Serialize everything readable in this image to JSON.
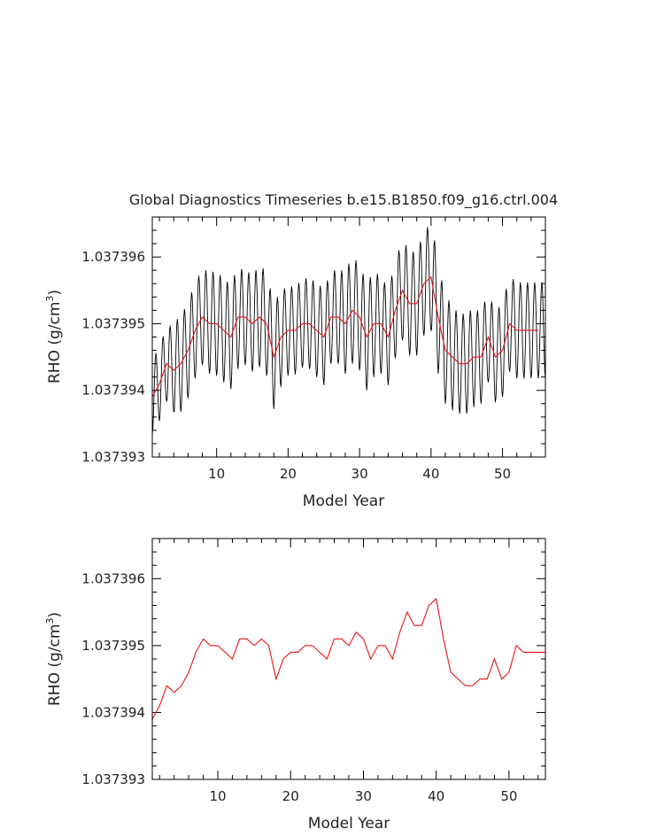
{
  "chart_data": [
    {
      "type": "line",
      "title": "Global Diagnostics Timeseries b.e15.B1850.f09_g16.ctrl.004",
      "xlabel": "Model Year",
      "ylabel": "RHO (g/cm",
      "ylabel_sup": "3",
      "ylabel_close": ")",
      "xlim": [
        1,
        56
      ],
      "ylim": [
        1.037393,
        1.0373966
      ],
      "xticks": [
        10,
        20,
        30,
        40,
        50
      ],
      "xtick_labels": [
        "10",
        "20",
        "30",
        "40",
        "50"
      ],
      "yticks": [
        1.037393,
        1.037394,
        1.037395,
        1.037396
      ],
      "ytick_labels": [
        "1.037393",
        "1.037394",
        "1.037395",
        "1.037396"
      ],
      "grid": false,
      "series": [
        {
          "color": "#000000",
          "resolution": "monthly",
          "x_start": 1.0,
          "x_step": 0.0833333,
          "seasonal_amplitude": [
            0.56,
            0.56,
            0.62,
            0.72,
            0.72,
            0.72,
            0.72,
            0.75,
            0.78,
            0.78,
            0.78,
            0.78,
            0.72,
            0.72,
            0.75,
            0.78,
            0.78,
            0.75,
            0.68,
            0.66,
            0.66,
            0.68,
            0.7,
            0.72,
            0.7,
            0.7,
            0.75,
            0.8,
            0.8,
            0.8,
            0.8,
            0.75,
            0.72,
            0.72,
            0.75,
            0.78,
            0.78,
            0.78,
            0.8,
            0.85,
            0.8,
            0.8,
            0.75,
            0.75,
            0.75,
            0.7,
            0.68,
            0.68,
            0.7,
            0.72,
            0.72,
            0.72,
            0.72,
            0.72,
            0.72
          ]
        },
        {
          "color": "#e8141a",
          "resolution": "annual",
          "x": [
            1,
            2,
            3,
            4,
            5,
            6,
            7,
            8,
            9,
            10,
            11,
            12,
            13,
            14,
            15,
            16,
            17,
            18,
            19,
            20,
            21,
            22,
            23,
            24,
            25,
            26,
            27,
            28,
            29,
            30,
            31,
            32,
            33,
            34,
            35,
            36,
            37,
            38,
            39,
            40,
            41,
            42,
            43,
            44,
            45,
            46,
            47,
            48,
            49,
            50,
            51,
            52,
            53,
            54,
            55
          ],
          "values": [
            1.0373939,
            1.0373941,
            1.0373944,
            1.0373943,
            1.0373944,
            1.0373946,
            1.0373949,
            1.0373951,
            1.037395,
            1.037395,
            1.0373949,
            1.0373948,
            1.0373951,
            1.0373951,
            1.037395,
            1.0373951,
            1.037395,
            1.0373945,
            1.0373948,
            1.0373949,
            1.0373949,
            1.037395,
            1.037395,
            1.0373949,
            1.0373948,
            1.0373951,
            1.0373951,
            1.037395,
            1.0373952,
            1.0373951,
            1.0373948,
            1.037395,
            1.037395,
            1.0373948,
            1.0373952,
            1.0373955,
            1.0373953,
            1.0373953,
            1.0373956,
            1.0373957,
            1.0373951,
            1.0373946,
            1.0373945,
            1.0373944,
            1.0373944,
            1.0373945,
            1.0373945,
            1.0373948,
            1.0373945,
            1.0373946,
            1.037395,
            1.0373949,
            1.0373949,
            1.0373949,
            1.0373949
          ]
        }
      ]
    },
    {
      "type": "line",
      "title": "",
      "xlabel": "Model Year",
      "ylabel": "RHO (g/cm",
      "ylabel_sup": "3",
      "ylabel_close": ")",
      "xlim": [
        1,
        55
      ],
      "ylim": [
        1.037393,
        1.0373966
      ],
      "xticks": [
        10,
        20,
        30,
        40,
        50
      ],
      "xtick_labels": [
        "10",
        "20",
        "30",
        "40",
        "50"
      ],
      "yticks": [
        1.037393,
        1.037394,
        1.037395,
        1.037396
      ],
      "ytick_labels": [
        "1.037393",
        "1.037394",
        "1.037395",
        "1.037396"
      ],
      "grid": false,
      "series": [
        {
          "color": "#e8141a",
          "resolution": "annual",
          "x": [
            1,
            2,
            3,
            4,
            5,
            6,
            7,
            8,
            9,
            10,
            11,
            12,
            13,
            14,
            15,
            16,
            17,
            18,
            19,
            20,
            21,
            22,
            23,
            24,
            25,
            26,
            27,
            28,
            29,
            30,
            31,
            32,
            33,
            34,
            35,
            36,
            37,
            38,
            39,
            40,
            41,
            42,
            43,
            44,
            45,
            46,
            47,
            48,
            49,
            50,
            51,
            52,
            53,
            54,
            55
          ],
          "values": [
            1.0373939,
            1.0373941,
            1.0373944,
            1.0373943,
            1.0373944,
            1.0373946,
            1.0373949,
            1.0373951,
            1.037395,
            1.037395,
            1.0373949,
            1.0373948,
            1.0373951,
            1.0373951,
            1.037395,
            1.0373951,
            1.037395,
            1.0373945,
            1.0373948,
            1.0373949,
            1.0373949,
            1.037395,
            1.037395,
            1.0373949,
            1.0373948,
            1.0373951,
            1.0373951,
            1.037395,
            1.0373952,
            1.0373951,
            1.0373948,
            1.037395,
            1.037395,
            1.0373948,
            1.0373952,
            1.0373955,
            1.0373953,
            1.0373953,
            1.0373956,
            1.0373957,
            1.0373951,
            1.0373946,
            1.0373945,
            1.0373944,
            1.0373944,
            1.0373945,
            1.0373945,
            1.0373948,
            1.0373945,
            1.0373946,
            1.037395,
            1.0373949,
            1.0373949,
            1.0373949,
            1.0373949
          ]
        }
      ]
    }
  ]
}
